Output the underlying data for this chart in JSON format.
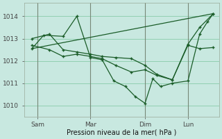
{
  "bg_color": "#c8e8e0",
  "grid_color": "#88ccaa",
  "line_color": "#1a5c28",
  "xlabel": "Pression niveau de la mer( hPa )",
  "ylim": [
    1009.5,
    1014.6
  ],
  "yticks": [
    1010,
    1011,
    1012,
    1013,
    1014
  ],
  "xtick_labels": [
    "Sam",
    "Mar",
    "Dim",
    "Lun"
  ],
  "vline_positions": [
    0.07,
    0.34,
    0.62,
    0.84
  ],
  "xlim": [
    0.0,
    1.0
  ],
  "trend_x": [
    0.04,
    0.97
  ],
  "trend_y": [
    1012.55,
    1014.12
  ],
  "line1_x": [
    0.04,
    0.13,
    0.2,
    0.27,
    0.34,
    0.4,
    0.47,
    0.55,
    0.62,
    0.68,
    0.76,
    0.84,
    0.9,
    0.97
  ],
  "line1_y": [
    1013.0,
    1013.2,
    1012.5,
    1012.4,
    1012.3,
    1012.2,
    1012.15,
    1012.1,
    1011.8,
    1011.4,
    1011.15,
    1012.7,
    1012.55,
    1012.6
  ],
  "line2_x": [
    0.04,
    0.1,
    0.2,
    0.27,
    0.34,
    0.4,
    0.46,
    0.52,
    0.57,
    0.62,
    0.66,
    0.7,
    0.76,
    0.84,
    0.9,
    0.94,
    0.97
  ],
  "line2_y": [
    1012.55,
    1013.15,
    1013.1,
    1014.0,
    1012.15,
    1012.05,
    1011.1,
    1010.85,
    1010.4,
    1010.1,
    1011.2,
    1010.85,
    1011.0,
    1011.1,
    1013.2,
    1013.75,
    1014.12
  ],
  "line3_x": [
    0.04,
    0.13,
    0.2,
    0.27,
    0.34,
    0.4,
    0.47,
    0.55,
    0.62,
    0.68,
    0.76,
    0.84,
    0.9,
    0.97
  ],
  "line3_y": [
    1012.7,
    1012.5,
    1012.2,
    1012.3,
    1012.2,
    1012.1,
    1011.8,
    1011.5,
    1011.6,
    1011.35,
    1011.15,
    1012.75,
    1013.5,
    1014.12
  ]
}
